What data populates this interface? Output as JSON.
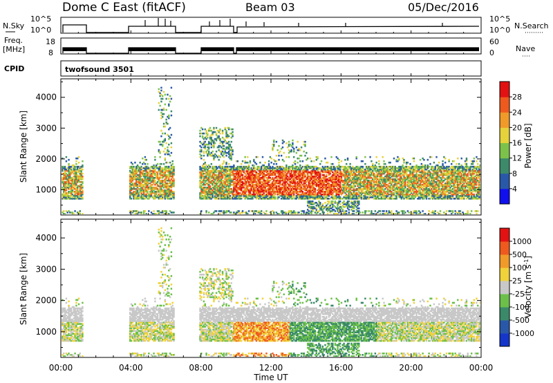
{
  "header": {
    "station": "Dome C East (fitACF)",
    "beam": "Beam 03",
    "date": "05/Dec/2016"
  },
  "nsky_panel": {
    "left_label": "N.Sky",
    "left_ticks": [
      "10^5",
      "10^0"
    ],
    "right_ticks": [
      "10^5",
      "10^0"
    ],
    "right_label": "N.Search"
  },
  "freq_panel": {
    "left_label_1": "Freq.",
    "left_label_2": "[MHz]",
    "left_ticks": [
      "18",
      "8"
    ],
    "right_ticks": [
      "60",
      "0"
    ],
    "right_label": "Nave"
  },
  "cpid": {
    "label": "CPID",
    "value": "twofsound 3501"
  },
  "axes": {
    "xlabel": "Time UT",
    "xticks": [
      "00:00",
      "04:00",
      "08:00",
      "12:00",
      "16:00",
      "20:00",
      "00:00"
    ],
    "ylabel": "Slant Range [km]",
    "yticks": [
      "4000",
      "3000",
      "2000",
      "1000"
    ]
  },
  "power_colorbar": {
    "label": "Power [dB]",
    "ticks": [
      "28",
      "24",
      "20",
      "16",
      "12",
      "8",
      "4"
    ],
    "colors": [
      "#1010ee",
      "#2a58a8",
      "#3c8a6a",
      "#7cc24a",
      "#e6d23a",
      "#f09a2a",
      "#ee5a1e",
      "#e21212"
    ]
  },
  "velocity_colorbar": {
    "label": "Velocity [m s",
    "label_sup": "-1",
    "label_end": "]",
    "ticks": [
      "1000",
      "500",
      "100",
      "25",
      "-25",
      "-100",
      "-500",
      "-1000"
    ],
    "colors": [
      "#1536c8",
      "#2a58a8",
      "#3a8a6a",
      "#6cc04a",
      "#c8c8c8",
      "#f0d23a",
      "#f09a2a",
      "#ee5a1e",
      "#e21212"
    ]
  },
  "chart_data": {
    "type": "heatmap",
    "x_range_hours": [
      0,
      24
    ],
    "y_range_km": [
      180,
      4600
    ],
    "data_gaps_ut": [
      [
        "01:15",
        "03:50"
      ],
      [
        "06:30",
        "07:50"
      ]
    ],
    "power_main_band_km": [
      600,
      1800
    ],
    "velocity_main_band_km": [
      600,
      1800
    ]
  }
}
